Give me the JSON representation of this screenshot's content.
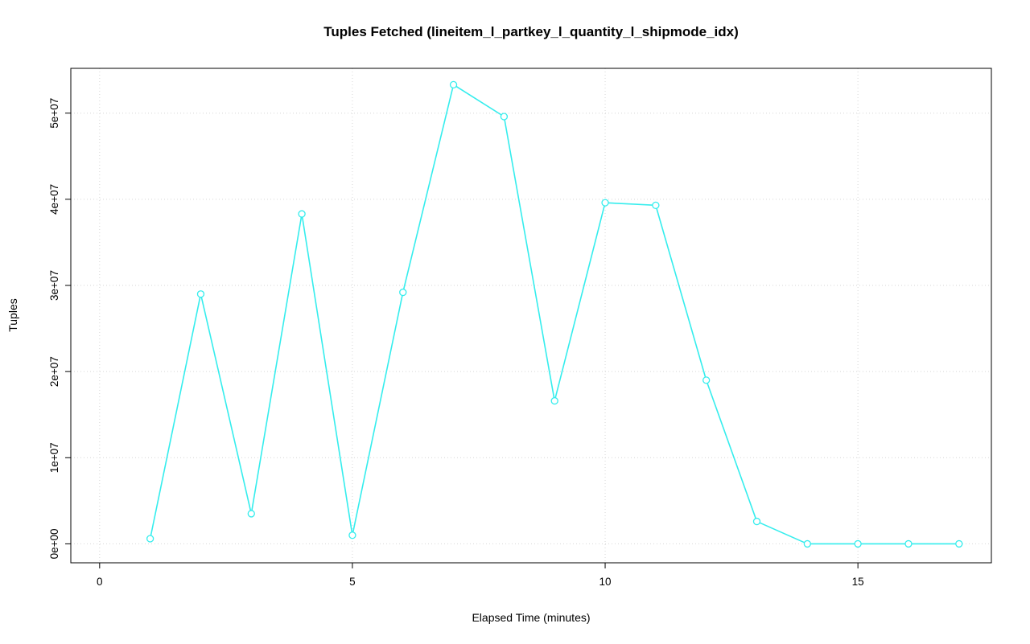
{
  "chart_data": {
    "type": "line",
    "title": "Tuples Fetched (lineitem_l_partkey_l_quantity_l_shipmode_idx)",
    "xlabel": "Elapsed Time (minutes)",
    "ylabel": "Tuples",
    "x": [
      1,
      2,
      3,
      4,
      5,
      6,
      7,
      8,
      9,
      10,
      11,
      12,
      13,
      14,
      15,
      16,
      17
    ],
    "values": [
      600000,
      29000000,
      3500000,
      38300000,
      1000000,
      29200000,
      53300000,
      49600000,
      16600000,
      39600000,
      39300000,
      19000000,
      2600000,
      0,
      0,
      0,
      0
    ],
    "xticks": [
      0,
      5,
      10,
      15
    ],
    "xtick_labels": [
      "0",
      "5",
      "10",
      "15"
    ],
    "yticks": [
      0,
      10000000,
      20000000,
      30000000,
      40000000,
      50000000
    ],
    "ytick_labels": [
      "0e+00",
      "1e+07",
      "2e+07",
      "3e+07",
      "4e+07",
      "5e+07"
    ],
    "xlim": [
      -0.57,
      17.64
    ],
    "ylim": [
      -2200000,
      55200000
    ],
    "grid": true,
    "grid_color": "#d6d6d6",
    "line_color": "#35eded",
    "marker": "open-circle",
    "marker_fill": "#ffffff",
    "axis_color": "#000000",
    "legend": null
  }
}
